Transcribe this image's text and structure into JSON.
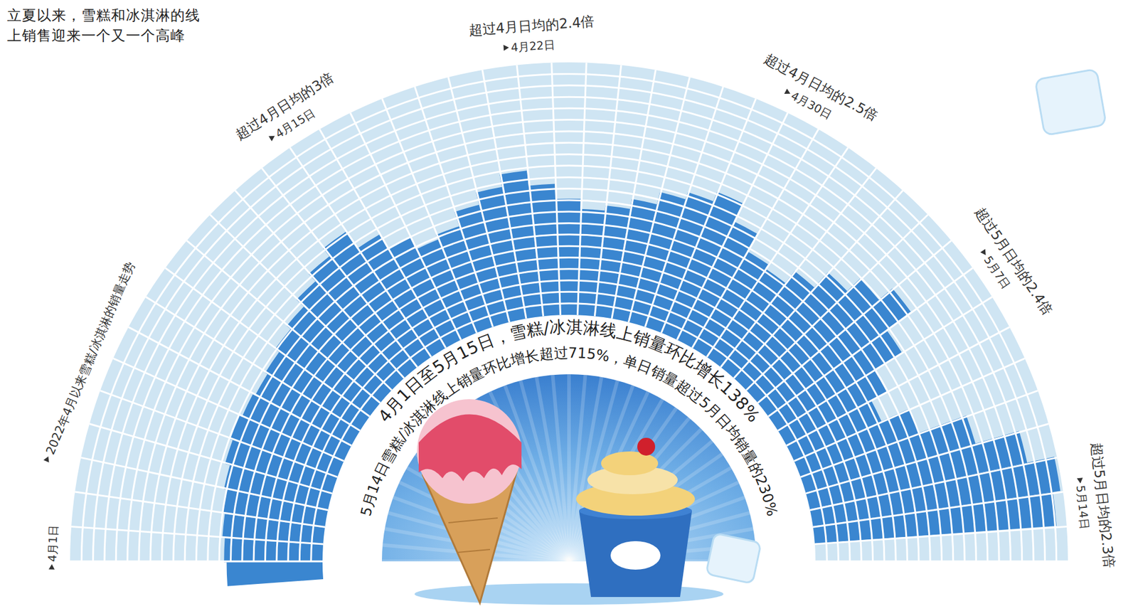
{
  "chart_data": {
    "type": "radial_bar",
    "title": "立夏以来，雪糕和冰淇淋的线上销售迎来一个又一个高峰",
    "subtitle": "2022年4月以来雪糕/冰淇淋的销量走势",
    "center_texts": [
      "4月1日至5月15日，雪糕/冰淇淋线上销量环比增长138%",
      "5月14日雪糕/冰淇淋线上销量环比增长超过715%，单日销量超过5月日均销量的230%"
    ],
    "categories": [
      "4月1日",
      null,
      null,
      null,
      null,
      null,
      null,
      null,
      null,
      null,
      null,
      null,
      null,
      null,
      "4月15日",
      null,
      null,
      null,
      null,
      null,
      null,
      "4月22日",
      null,
      null,
      null,
      null,
      null,
      null,
      null,
      "4月30日",
      null,
      null,
      null,
      null,
      null,
      null,
      "5月7日",
      null,
      null,
      null,
      null,
      null,
      null,
      "5月14日",
      null
    ],
    "values": [
      38,
      39,
      40,
      41,
      42,
      44,
      45,
      44,
      43,
      44,
      46,
      48,
      52,
      56,
      60,
      52,
      45,
      40,
      42,
      48,
      53,
      58,
      52,
      46,
      42,
      44,
      48,
      53,
      56,
      60,
      52,
      44,
      42,
      48,
      56,
      63,
      70,
      58,
      45,
      38,
      50,
      70,
      88,
      99,
      96
    ],
    "color": "#3a86d0",
    "ylim": [
      0,
      100
    ],
    "tick_labels": false,
    "annotations": [
      {
        "category": "4月15日",
        "text": "超过4月日均的3倍"
      },
      {
        "category": "4月22日",
        "text": "超过4月日均的2.4倍"
      },
      {
        "category": "4月30日",
        "text": "超过4月日均的2.5倍"
      },
      {
        "category": "5月7日",
        "text": "超过5月日均的2.4倍"
      },
      {
        "category": "5月14日",
        "text": "超过5月日均的2.3倍"
      }
    ]
  }
}
